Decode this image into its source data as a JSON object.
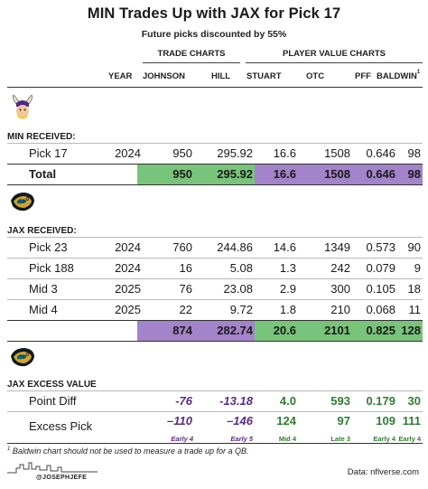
{
  "title": "MIN Trades Up with JAX for Pick 17",
  "subtitle": "Future picks discounted by 55%",
  "groups": {
    "trade": "TRADE CHARTS",
    "player": "PLAYER VALUE CHARTS"
  },
  "headers": {
    "year": "YEAR",
    "johnson": "JOHNSON",
    "hill": "HILL",
    "stuart": "STUART",
    "otc": "OTC",
    "pff": "PFF",
    "baldwin": "BALDWIN",
    "baldwin_note": "1"
  },
  "min_section": {
    "label": "MIN RECEIVED:",
    "rows": [
      {
        "pick": "Pick 17",
        "year": "2024",
        "johnson": "950",
        "hill": "295.92",
        "stuart": "16.6",
        "otc": "1508",
        "pff": "0.646",
        "baldwin": "98"
      }
    ],
    "total": {
      "label": "Total",
      "johnson": "950",
      "hill": "295.92",
      "stuart": "16.6",
      "otc": "1508",
      "pff": "0.646",
      "baldwin": "98"
    }
  },
  "jax_section": {
    "label": "JAX RECEIVED:",
    "rows": [
      {
        "pick": "Pick 23",
        "year": "2024",
        "johnson": "760",
        "hill": "244.86",
        "stuart": "14.6",
        "otc": "1349",
        "pff": "0.573",
        "baldwin": "90"
      },
      {
        "pick": "Pick 188",
        "year": "2024",
        "johnson": "16",
        "hill": "5.08",
        "stuart": "1.3",
        "otc": "242",
        "pff": "0.079",
        "baldwin": "9"
      },
      {
        "pick": "Mid 3",
        "year": "2025",
        "johnson": "76",
        "hill": "23.08",
        "stuart": "2.9",
        "otc": "300",
        "pff": "0.105",
        "baldwin": "18"
      },
      {
        "pick": "Mid 4",
        "year": "2025",
        "johnson": "22",
        "hill": "9.72",
        "stuart": "1.8",
        "otc": "210",
        "pff": "0.068",
        "baldwin": "11"
      }
    ],
    "total": {
      "johnson": "874",
      "hill": "282.74",
      "stuart": "20.6",
      "otc": "2101",
      "pff": "0.825",
      "baldwin": "128"
    }
  },
  "excess": {
    "label": "JAX EXCESS VALUE",
    "point_diff": {
      "label": "Point Diff",
      "johnson": "-76",
      "hill": "-13.18",
      "stuart": "4.0",
      "otc": "593",
      "pff": "0.179",
      "baldwin": "30"
    },
    "excess_pick": {
      "label": "Excess Pick",
      "johnson": "–110",
      "hill": "–146",
      "stuart": "124",
      "otc": "97",
      "pff": "109",
      "baldwin": "111",
      "tags": {
        "johnson": "Early 4",
        "hill": "Early 5",
        "stuart": "Mid 4",
        "otc": "Late 3",
        "pff": "Early 4",
        "baldwin": "Early 4"
      }
    }
  },
  "footnote": {
    "mark": "1",
    "text": "Baldwin chart should not be used to measure a trade up for a QB."
  },
  "handle": "@JOSEPHJEFE",
  "source": "Data: nflverse.com",
  "colors": {
    "green": "#78c47a",
    "purple": "#a383c9",
    "neg_text": "#5b2a86",
    "pos_text": "#2e7d32"
  }
}
